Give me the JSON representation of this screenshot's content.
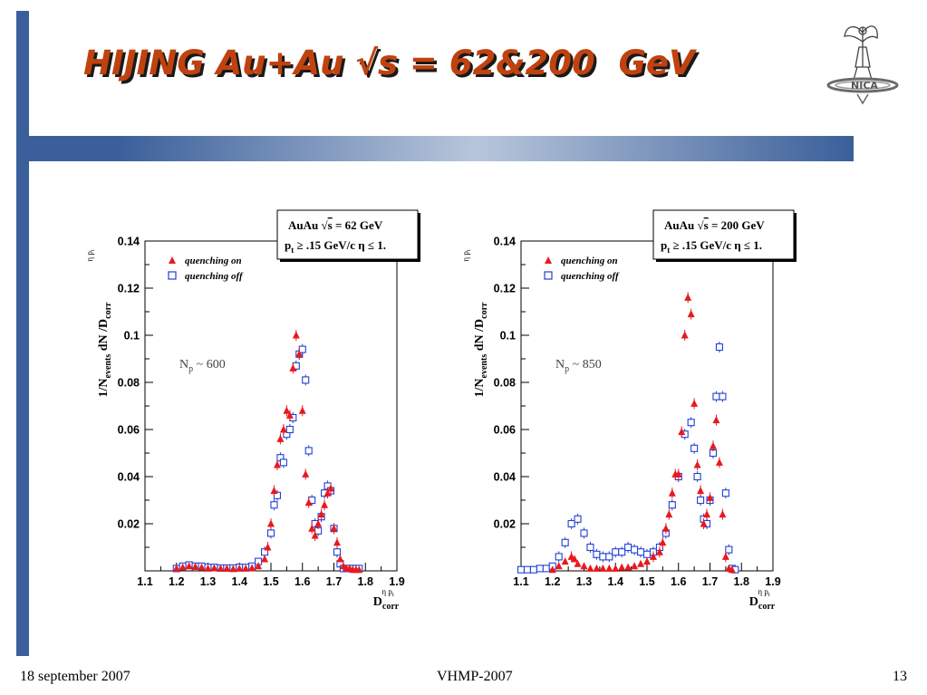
{
  "slide": {
    "title": "HIJING Au+Au √s = 62&200  GeV",
    "footer_date": "18 september 2007",
    "footer_conference": "VHMP-2007",
    "page_number": "13",
    "colors": {
      "accent_bar": "#3a5f9a",
      "title": "#c0420f"
    }
  },
  "logo": {
    "icon": "winged-figure-logo",
    "text": "NICA"
  },
  "chart_data": [
    {
      "type": "scatter",
      "title": "",
      "xlabel": "D",
      "xlabel_sub": "corr",
      "xlabel_sup": "η p",
      "xlabel_sup_sub": "t",
      "ylabel": "1/N",
      "ylabel_sub1": "events",
      "ylabel_mid": " dN /D",
      "ylabel_sub2": "corr",
      "ylabel_sup": "η p",
      "ylabel_sup_sub": "t",
      "xlim": [
        1.1,
        1.9
      ],
      "ylim": [
        0,
        0.14
      ],
      "xticks": [
        "1.1",
        "1.2",
        "1.3",
        "1.4",
        "1.5",
        "1.6",
        "1.7",
        "1.8",
        "1.9"
      ],
      "yticks": [
        "0.02",
        "0.04",
        "0.06",
        "0.08",
        "0.1",
        "0.12",
        "0.14"
      ],
      "legend": {
        "position": "top-left",
        "on_label": "quenching on",
        "off_label": "quenching off"
      },
      "info_box": {
        "line1a": "AuAu ",
        "line1b": "s",
        "line1c": " = 62 GeV",
        "line2a": "p",
        "line2b": "t",
        "line2c": " ≥ .15 GeV/c   η ≤ 1."
      },
      "annotation": {
        "main": "N",
        "sub": "p",
        "rest": " ~ 600"
      },
      "series": [
        {
          "name": "quenching on",
          "color": "#e8191e",
          "marker": "filled-triangle",
          "x": [
            1.2,
            1.22,
            1.24,
            1.26,
            1.28,
            1.3,
            1.32,
            1.34,
            1.36,
            1.38,
            1.4,
            1.42,
            1.44,
            1.46,
            1.48,
            1.49,
            1.5,
            1.51,
            1.52,
            1.53,
            1.54,
            1.55,
            1.56,
            1.57,
            1.58,
            1.59,
            1.6,
            1.61,
            1.62,
            1.63,
            1.64,
            1.65,
            1.66,
            1.67,
            1.68,
            1.69,
            1.7,
            1.71,
            1.72,
            1.73,
            1.74,
            1.75,
            1.76,
            1.77,
            1.78
          ],
          "y": [
            0.001,
            0.0015,
            0.002,
            0.0018,
            0.0015,
            0.001,
            0.0012,
            0.001,
            0.001,
            0.0008,
            0.001,
            0.001,
            0.0012,
            0.002,
            0.005,
            0.01,
            0.02,
            0.034,
            0.045,
            0.056,
            0.06,
            0.068,
            0.066,
            0.086,
            0.1,
            0.092,
            0.068,
            0.041,
            0.029,
            0.018,
            0.015,
            0.02,
            0.024,
            0.028,
            0.033,
            0.035,
            0.018,
            0.012,
            0.005,
            0.002,
            0.001,
            0.001,
            0.0005,
            0.0005,
            0.0005
          ]
        },
        {
          "name": "quenching off",
          "color": "#2040d8",
          "marker": "open-square",
          "x": [
            1.2,
            1.22,
            1.24,
            1.26,
            1.28,
            1.3,
            1.32,
            1.34,
            1.36,
            1.38,
            1.4,
            1.42,
            1.44,
            1.46,
            1.48,
            1.5,
            1.51,
            1.52,
            1.53,
            1.54,
            1.55,
            1.56,
            1.57,
            1.58,
            1.59,
            1.6,
            1.61,
            1.62,
            1.63,
            1.64,
            1.65,
            1.66,
            1.67,
            1.68,
            1.69,
            1.7,
            1.71,
            1.72,
            1.73,
            1.74,
            1.75,
            1.76,
            1.77,
            1.78
          ],
          "y": [
            0.001,
            0.002,
            0.0025,
            0.002,
            0.002,
            0.0015,
            0.0015,
            0.0012,
            0.0012,
            0.0012,
            0.0015,
            0.0015,
            0.002,
            0.004,
            0.008,
            0.016,
            0.028,
            0.032,
            0.048,
            0.046,
            0.058,
            0.06,
            0.065,
            0.087,
            0.092,
            0.094,
            0.081,
            0.051,
            0.03,
            0.02,
            0.017,
            0.023,
            0.033,
            0.036,
            0.034,
            0.018,
            0.008,
            0.003,
            0.001,
            0.001,
            0.001,
            0.001,
            0.001,
            0.001
          ]
        }
      ]
    },
    {
      "type": "scatter",
      "title": "",
      "xlabel": "D",
      "xlabel_sub": "corr",
      "xlabel_sup": "η p",
      "xlabel_sup_sub": "t",
      "ylabel": "1/N",
      "ylabel_sub1": "events",
      "ylabel_mid": " dN /D",
      "ylabel_sub2": "corr",
      "ylabel_sup": "η p",
      "ylabel_sup_sub": "t",
      "xlim": [
        1.1,
        1.9
      ],
      "ylim": [
        0,
        0.14
      ],
      "xticks": [
        "1.1",
        "1.2",
        "1.3",
        "1.4",
        "1.5",
        "1.6",
        "1.7",
        "1.8",
        "1.9"
      ],
      "yticks": [
        "0.02",
        "0.04",
        "0.06",
        "0.08",
        "0.1",
        "0.12",
        "0.14"
      ],
      "legend": {
        "position": "top-left",
        "on_label": "quenching on",
        "off_label": "quenching off"
      },
      "info_box": {
        "line1a": "AuAu ",
        "line1b": "s",
        "line1c": " = 200 GeV",
        "line2a": "p",
        "line2b": "t",
        "line2c": " ≥ .15 GeV/c   η ≤ 1."
      },
      "annotation": {
        "main": "N",
        "sub": "p",
        "rest": " ~ 850"
      },
      "series": [
        {
          "name": "quenching on",
          "color": "#e8191e",
          "marker": "filled-triangle",
          "x": [
            1.2,
            1.22,
            1.24,
            1.26,
            1.27,
            1.28,
            1.3,
            1.32,
            1.34,
            1.36,
            1.38,
            1.4,
            1.42,
            1.44,
            1.46,
            1.48,
            1.5,
            1.52,
            1.54,
            1.55,
            1.56,
            1.57,
            1.58,
            1.59,
            1.6,
            1.61,
            1.62,
            1.63,
            1.64,
            1.65,
            1.66,
            1.67,
            1.68,
            1.69,
            1.7,
            1.71,
            1.72,
            1.73,
            1.74,
            1.75,
            1.76,
            1.77
          ],
          "y": [
            0.0005,
            0.002,
            0.004,
            0.006,
            0.005,
            0.003,
            0.002,
            0.001,
            0.001,
            0.001,
            0.001,
            0.001,
            0.0015,
            0.0015,
            0.002,
            0.003,
            0.004,
            0.006,
            0.008,
            0.012,
            0.018,
            0.024,
            0.033,
            0.041,
            0.041,
            0.059,
            0.1,
            0.116,
            0.109,
            0.071,
            0.045,
            0.034,
            0.02,
            0.024,
            0.031,
            0.053,
            0.064,
            0.046,
            0.024,
            0.006,
            0.001,
            0.0005
          ]
        },
        {
          "name": "quenching off",
          "color": "#2040d8",
          "marker": "open-square",
          "x": [
            1.1,
            1.12,
            1.14,
            1.16,
            1.18,
            1.2,
            1.22,
            1.24,
            1.26,
            1.28,
            1.3,
            1.32,
            1.34,
            1.36,
            1.38,
            1.4,
            1.42,
            1.44,
            1.46,
            1.48,
            1.5,
            1.52,
            1.54,
            1.56,
            1.58,
            1.6,
            1.62,
            1.64,
            1.65,
            1.66,
            1.67,
            1.68,
            1.69,
            1.7,
            1.71,
            1.72,
            1.73,
            1.74,
            1.75,
            1.76,
            1.77,
            1.78
          ],
          "y": [
            0.0005,
            0.0005,
            0.0005,
            0.001,
            0.001,
            0.002,
            0.006,
            0.012,
            0.02,
            0.022,
            0.016,
            0.01,
            0.007,
            0.006,
            0.006,
            0.008,
            0.008,
            0.01,
            0.009,
            0.008,
            0.007,
            0.008,
            0.01,
            0.016,
            0.028,
            0.04,
            0.058,
            0.063,
            0.052,
            0.04,
            0.03,
            0.022,
            0.02,
            0.03,
            0.05,
            0.074,
            0.095,
            0.074,
            0.033,
            0.009,
            0.001,
            0.0005
          ]
        }
      ]
    }
  ]
}
